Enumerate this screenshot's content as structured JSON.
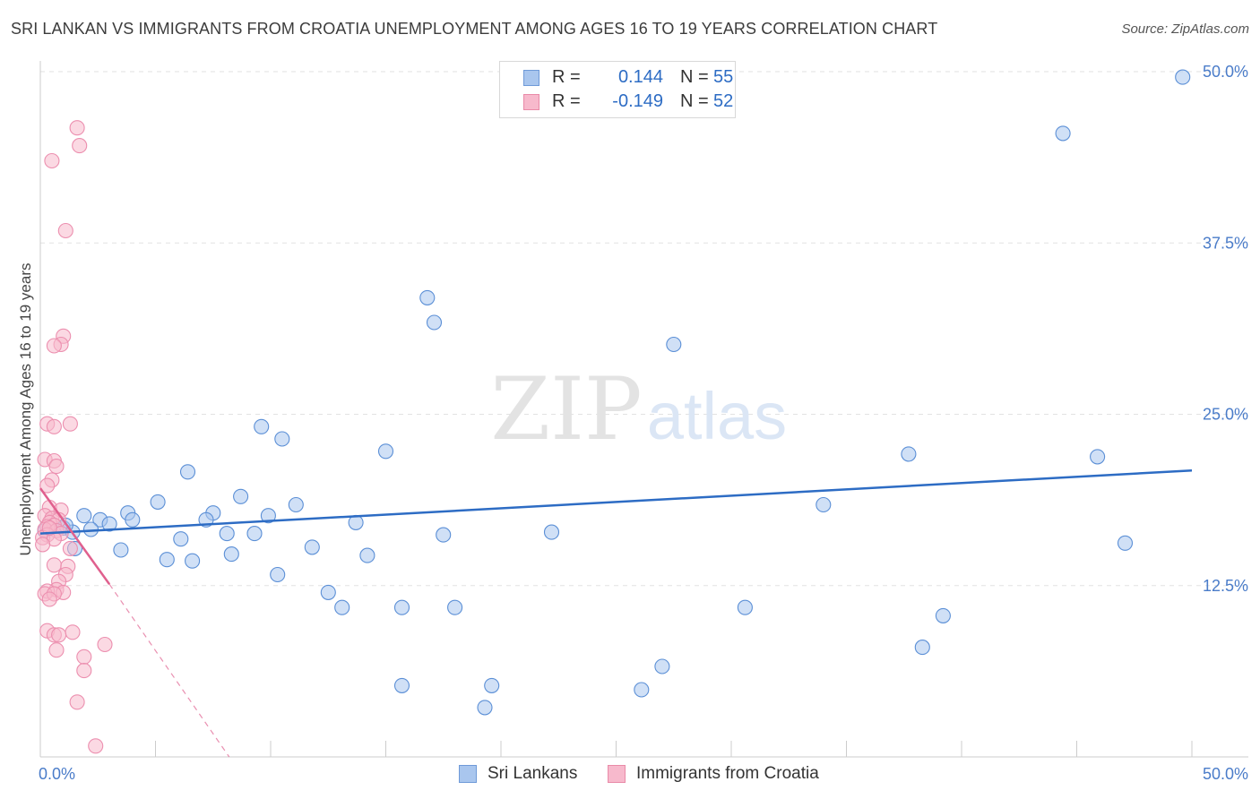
{
  "title": "SRI LANKAN VS IMMIGRANTS FROM CROATIA UNEMPLOYMENT AMONG AGES 16 TO 19 YEARS CORRELATION CHART",
  "source": "Source: ZipAtlas.com",
  "watermark": {
    "zip": "ZIP",
    "atlas": "atlas"
  },
  "legend": {
    "rows": [
      {
        "r_label": "R =",
        "r_value": "0.144",
        "n_label": "N =",
        "n_value": "55",
        "color": "#a9c6ee",
        "stroke": "#6f9ad8"
      },
      {
        "r_label": "R =",
        "r_value": "-0.149",
        "n_label": "N =",
        "n_value": "52",
        "color": "#f7b9cc",
        "stroke": "#e98aa8"
      }
    ]
  },
  "bottom_legend": [
    {
      "label": "Sri Lankans",
      "color": "#a9c6ee",
      "stroke": "#6f9ad8"
    },
    {
      "label": "Immigrants from Croatia",
      "color": "#f7b9cc",
      "stroke": "#e98aa8"
    }
  ],
  "chart_data": {
    "type": "scatter",
    "title": "SRI LANKAN VS IMMIGRANTS FROM CROATIA UNEMPLOYMENT AMONG AGES 16 TO 19 YEARS CORRELATION CHART",
    "xlabel": "",
    "ylabel": "Unemployment Among Ages 16 to 19 years",
    "xlim": [
      0,
      50
    ],
    "ylim": [
      0,
      50
    ],
    "x_tick_labels": [
      "0.0%",
      "50.0%"
    ],
    "y_ticks": [
      12.5,
      25.0,
      37.5,
      50.0
    ],
    "y_tick_labels": [
      "12.5%",
      "25.0%",
      "37.5%",
      "50.0%"
    ],
    "grid": "horizontal dashed",
    "series": [
      {
        "name": "Sri Lankans",
        "color": "#5b8fd6",
        "fill": "#a9c6ee",
        "trend": {
          "x": [
            0,
            50
          ],
          "y": [
            16.3,
            20.9
          ],
          "color": "#2d6cc4"
        },
        "points": [
          [
            49.6,
            49.6
          ],
          [
            44.4,
            45.5
          ],
          [
            16.8,
            33.5
          ],
          [
            17.1,
            31.7
          ],
          [
            27.5,
            30.1
          ],
          [
            9.6,
            24.1
          ],
          [
            10.5,
            23.2
          ],
          [
            15.0,
            22.3
          ],
          [
            37.7,
            22.1
          ],
          [
            45.9,
            21.9
          ],
          [
            6.4,
            20.8
          ],
          [
            8.7,
            19.0
          ],
          [
            5.1,
            18.6
          ],
          [
            11.1,
            18.4
          ],
          [
            34.0,
            18.4
          ],
          [
            3.8,
            17.8
          ],
          [
            7.5,
            17.8
          ],
          [
            1.9,
            17.6
          ],
          [
            2.6,
            17.3
          ],
          [
            4.0,
            17.3
          ],
          [
            9.9,
            17.6
          ],
          [
            7.2,
            17.3
          ],
          [
            13.7,
            17.1
          ],
          [
            3.0,
            17.0
          ],
          [
            1.0,
            16.7
          ],
          [
            2.2,
            16.6
          ],
          [
            1.4,
            16.4
          ],
          [
            0.2,
            16.5
          ],
          [
            8.1,
            16.3
          ],
          [
            9.3,
            16.3
          ],
          [
            22.2,
            16.4
          ],
          [
            17.5,
            16.2
          ],
          [
            6.1,
            15.9
          ],
          [
            47.1,
            15.6
          ],
          [
            1.5,
            15.2
          ],
          [
            3.5,
            15.1
          ],
          [
            11.8,
            15.3
          ],
          [
            8.3,
            14.8
          ],
          [
            14.2,
            14.7
          ],
          [
            5.5,
            14.4
          ],
          [
            6.6,
            14.3
          ],
          [
            10.3,
            13.3
          ],
          [
            12.5,
            12.0
          ],
          [
            13.1,
            10.9
          ],
          [
            15.7,
            10.9
          ],
          [
            18.0,
            10.9
          ],
          [
            30.6,
            10.9
          ],
          [
            39.2,
            10.3
          ],
          [
            38.3,
            8.0
          ],
          [
            27.0,
            6.6
          ],
          [
            15.7,
            5.2
          ],
          [
            19.6,
            5.2
          ],
          [
            26.1,
            4.9
          ],
          [
            19.3,
            3.6
          ],
          [
            1.1,
            16.9
          ]
        ]
      },
      {
        "name": "Immigrants from Croatia",
        "color": "#ec8faf",
        "fill": "#f7b9cc",
        "trend": {
          "x": [
            0,
            3.0
          ],
          "y": [
            19.6,
            12.6
          ],
          "dashed_to": [
            8.2,
            0
          ],
          "color": "#e0608e"
        },
        "points": [
          [
            1.6,
            45.9
          ],
          [
            1.7,
            44.6
          ],
          [
            0.5,
            43.5
          ],
          [
            1.1,
            38.4
          ],
          [
            1.0,
            30.7
          ],
          [
            0.9,
            30.1
          ],
          [
            0.6,
            30.0
          ],
          [
            0.3,
            24.3
          ],
          [
            1.3,
            24.3
          ],
          [
            0.6,
            24.1
          ],
          [
            0.2,
            21.7
          ],
          [
            0.6,
            21.6
          ],
          [
            0.7,
            21.2
          ],
          [
            0.5,
            20.2
          ],
          [
            0.3,
            19.8
          ],
          [
            0.4,
            18.2
          ],
          [
            0.9,
            18.0
          ],
          [
            0.2,
            17.6
          ],
          [
            0.5,
            17.4
          ],
          [
            0.8,
            17.3
          ],
          [
            0.4,
            17.1
          ],
          [
            0.6,
            16.9
          ],
          [
            0.3,
            16.8
          ],
          [
            0.2,
            16.6
          ],
          [
            0.7,
            16.5
          ],
          [
            0.9,
            16.3
          ],
          [
            0.3,
            16.2
          ],
          [
            0.1,
            16.0
          ],
          [
            0.6,
            15.9
          ],
          [
            0.1,
            15.5
          ],
          [
            1.3,
            15.2
          ],
          [
            0.6,
            14.0
          ],
          [
            1.2,
            13.9
          ],
          [
            1.1,
            13.3
          ],
          [
            0.8,
            12.8
          ],
          [
            0.7,
            12.2
          ],
          [
            0.3,
            12.1
          ],
          [
            1.0,
            12.0
          ],
          [
            0.2,
            11.9
          ],
          [
            0.6,
            11.9
          ],
          [
            0.4,
            11.5
          ],
          [
            1.4,
            9.1
          ],
          [
            0.3,
            9.2
          ],
          [
            0.6,
            8.9
          ],
          [
            0.8,
            8.9
          ],
          [
            2.8,
            8.2
          ],
          [
            0.7,
            7.8
          ],
          [
            1.9,
            7.3
          ],
          [
            1.9,
            6.3
          ],
          [
            1.6,
            4.0
          ],
          [
            2.4,
            0.8
          ],
          [
            0.4,
            16.7
          ]
        ]
      }
    ]
  }
}
